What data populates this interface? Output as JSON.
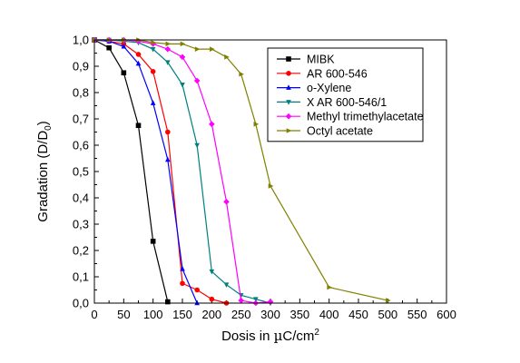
{
  "chart_data": {
    "type": "line",
    "xlabel": {
      "base": "Dosis in ",
      "unit_mu": "µ",
      "unit_rest": "C/cm",
      "sup": "2"
    },
    "ylabel": {
      "base": "Gradation (D/D",
      "sub": "0",
      "end": ")"
    },
    "xlim": [
      0,
      600
    ],
    "ylim": [
      0,
      1.0
    ],
    "xticks": [
      "0",
      "50",
      "100",
      "150",
      "200",
      "250",
      "300",
      "350",
      "400",
      "450",
      "500",
      "550",
      "600"
    ],
    "yticks": [
      "0,0",
      "0,1",
      "0,2",
      "0,3",
      "0,4",
      "0,5",
      "0,6",
      "0,7",
      "0,8",
      "0,9",
      "1,0"
    ],
    "grid": false,
    "legend_position": "top-right",
    "series": [
      {
        "name": "MIBK",
        "color": "#000000",
        "marker": "square",
        "x": [
          0,
          25,
          50,
          75,
          100,
          125
        ],
        "y": [
          1.0,
          0.97,
          0.875,
          0.675,
          0.235,
          0.005
        ]
      },
      {
        "name": "AR 600-546",
        "color": "#ff0000",
        "marker": "circle",
        "x": [
          0,
          25,
          50,
          75,
          100,
          125,
          150,
          175,
          200,
          225
        ],
        "y": [
          1.0,
          0.995,
          0.985,
          0.945,
          0.88,
          0.65,
          0.075,
          0.05,
          0.015,
          0.0
        ]
      },
      {
        "name": "o-Xylene",
        "color": "#0000ff",
        "marker": "triangle-up",
        "x": [
          0,
          25,
          50,
          75,
          100,
          125,
          150,
          175
        ],
        "y": [
          1.0,
          0.995,
          0.975,
          0.91,
          0.76,
          0.545,
          0.13,
          0.0
        ]
      },
      {
        "name": "X AR 600-546/1",
        "color": "#008080",
        "marker": "triangle-down",
        "x": [
          0,
          25,
          50,
          75,
          100,
          125,
          150,
          175,
          200,
          225,
          250,
          275,
          300
        ],
        "y": [
          1.0,
          1.0,
          0.995,
          0.99,
          0.965,
          0.915,
          0.83,
          0.6,
          0.12,
          0.07,
          0.03,
          0.015,
          0.0
        ]
      },
      {
        "name": "Methyl trimethylacetate",
        "color": "#ff00ff",
        "marker": "diamond",
        "x": [
          0,
          25,
          50,
          75,
          100,
          125,
          150,
          175,
          200,
          225,
          250,
          275,
          300
        ],
        "y": [
          1.0,
          1.0,
          1.0,
          0.995,
          0.985,
          0.965,
          0.935,
          0.845,
          0.68,
          0.385,
          0.01,
          0.0,
          0.005
        ]
      },
      {
        "name": "Octyl acetate",
        "color": "#808000",
        "marker": "triangle-right",
        "x": [
          0,
          25,
          50,
          75,
          100,
          125,
          150,
          175,
          200,
          225,
          250,
          275,
          300,
          400,
          500
        ],
        "y": [
          1.0,
          1.0,
          1.0,
          1.0,
          0.99,
          0.985,
          0.985,
          0.965,
          0.965,
          0.935,
          0.87,
          0.68,
          0.445,
          0.06,
          0.01
        ]
      }
    ]
  }
}
